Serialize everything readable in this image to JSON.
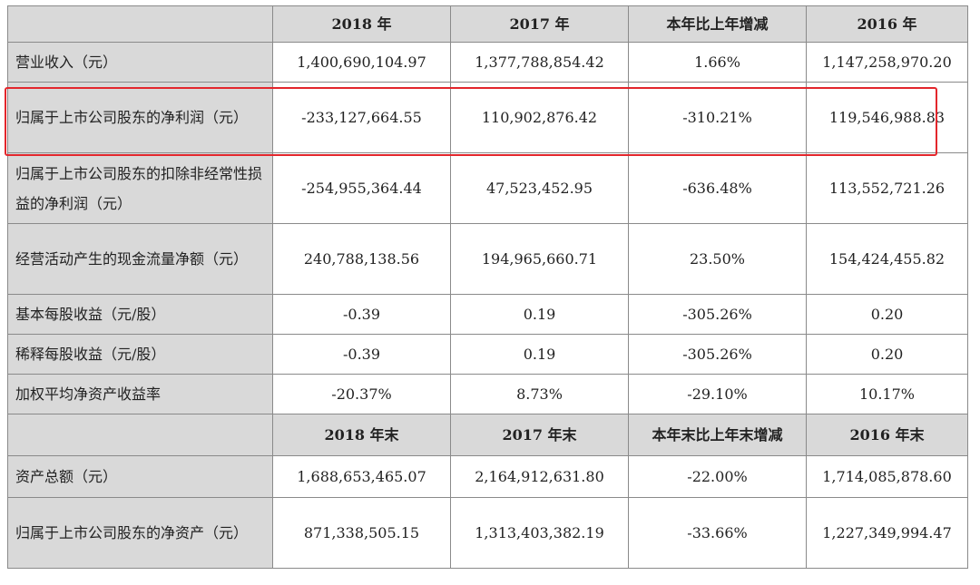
{
  "header": {
    "columns": [
      "2018 年",
      "2017 年",
      "本年比上年增减",
      "2016 年"
    ]
  },
  "rows": [
    {
      "label": "营业收入（元）",
      "values": [
        "1,400,690,104.97",
        "1,377,788,854.42",
        "1.66%",
        "1,147,258,970.20"
      ]
    },
    {
      "label": "归属于上市公司股东的净利润（元）",
      "values": [
        "-233,127,664.55",
        "110,902,876.42",
        "-310.21%",
        "119,546,988.83"
      ]
    },
    {
      "label": "归属于上市公司股东的扣除非经常性损益的净利润（元）",
      "values": [
        "-254,955,364.44",
        "47,523,452.95",
        "-636.48%",
        "113,552,721.26"
      ]
    },
    {
      "label": "经营活动产生的现金流量净额（元）",
      "values": [
        "240,788,138.56",
        "194,965,660.71",
        "23.50%",
        "154,424,455.82"
      ]
    },
    {
      "label": "基本每股收益（元/股）",
      "values": [
        "-0.39",
        "0.19",
        "-305.26%",
        "0.20"
      ]
    },
    {
      "label": "稀释每股收益（元/股）",
      "values": [
        "-0.39",
        "0.19",
        "-305.26%",
        "0.20"
      ]
    },
    {
      "label": "加权平均净资产收益率",
      "values": [
        "-20.37%",
        "8.73%",
        "-29.10%",
        "10.17%"
      ]
    }
  ],
  "header2": {
    "columns": [
      "2018 年末",
      "2017 年末",
      "本年末比上年末增减",
      "2016 年末"
    ]
  },
  "rows2": [
    {
      "label": "资产总额（元）",
      "values": [
        "1,688,653,465.07",
        "2,164,912,631.80",
        "-22.00%",
        "1,714,085,878.60"
      ]
    },
    {
      "label": "归属于上市公司股东的净资产（元）",
      "values": [
        "871,338,505.15",
        "1,313,403,382.19",
        "-33.66%",
        "1,227,349,994.47"
      ]
    }
  ],
  "colors": {
    "highlight": "#e3262c",
    "header_bg": "#d9d9d9",
    "border": "#8a8a8a"
  }
}
